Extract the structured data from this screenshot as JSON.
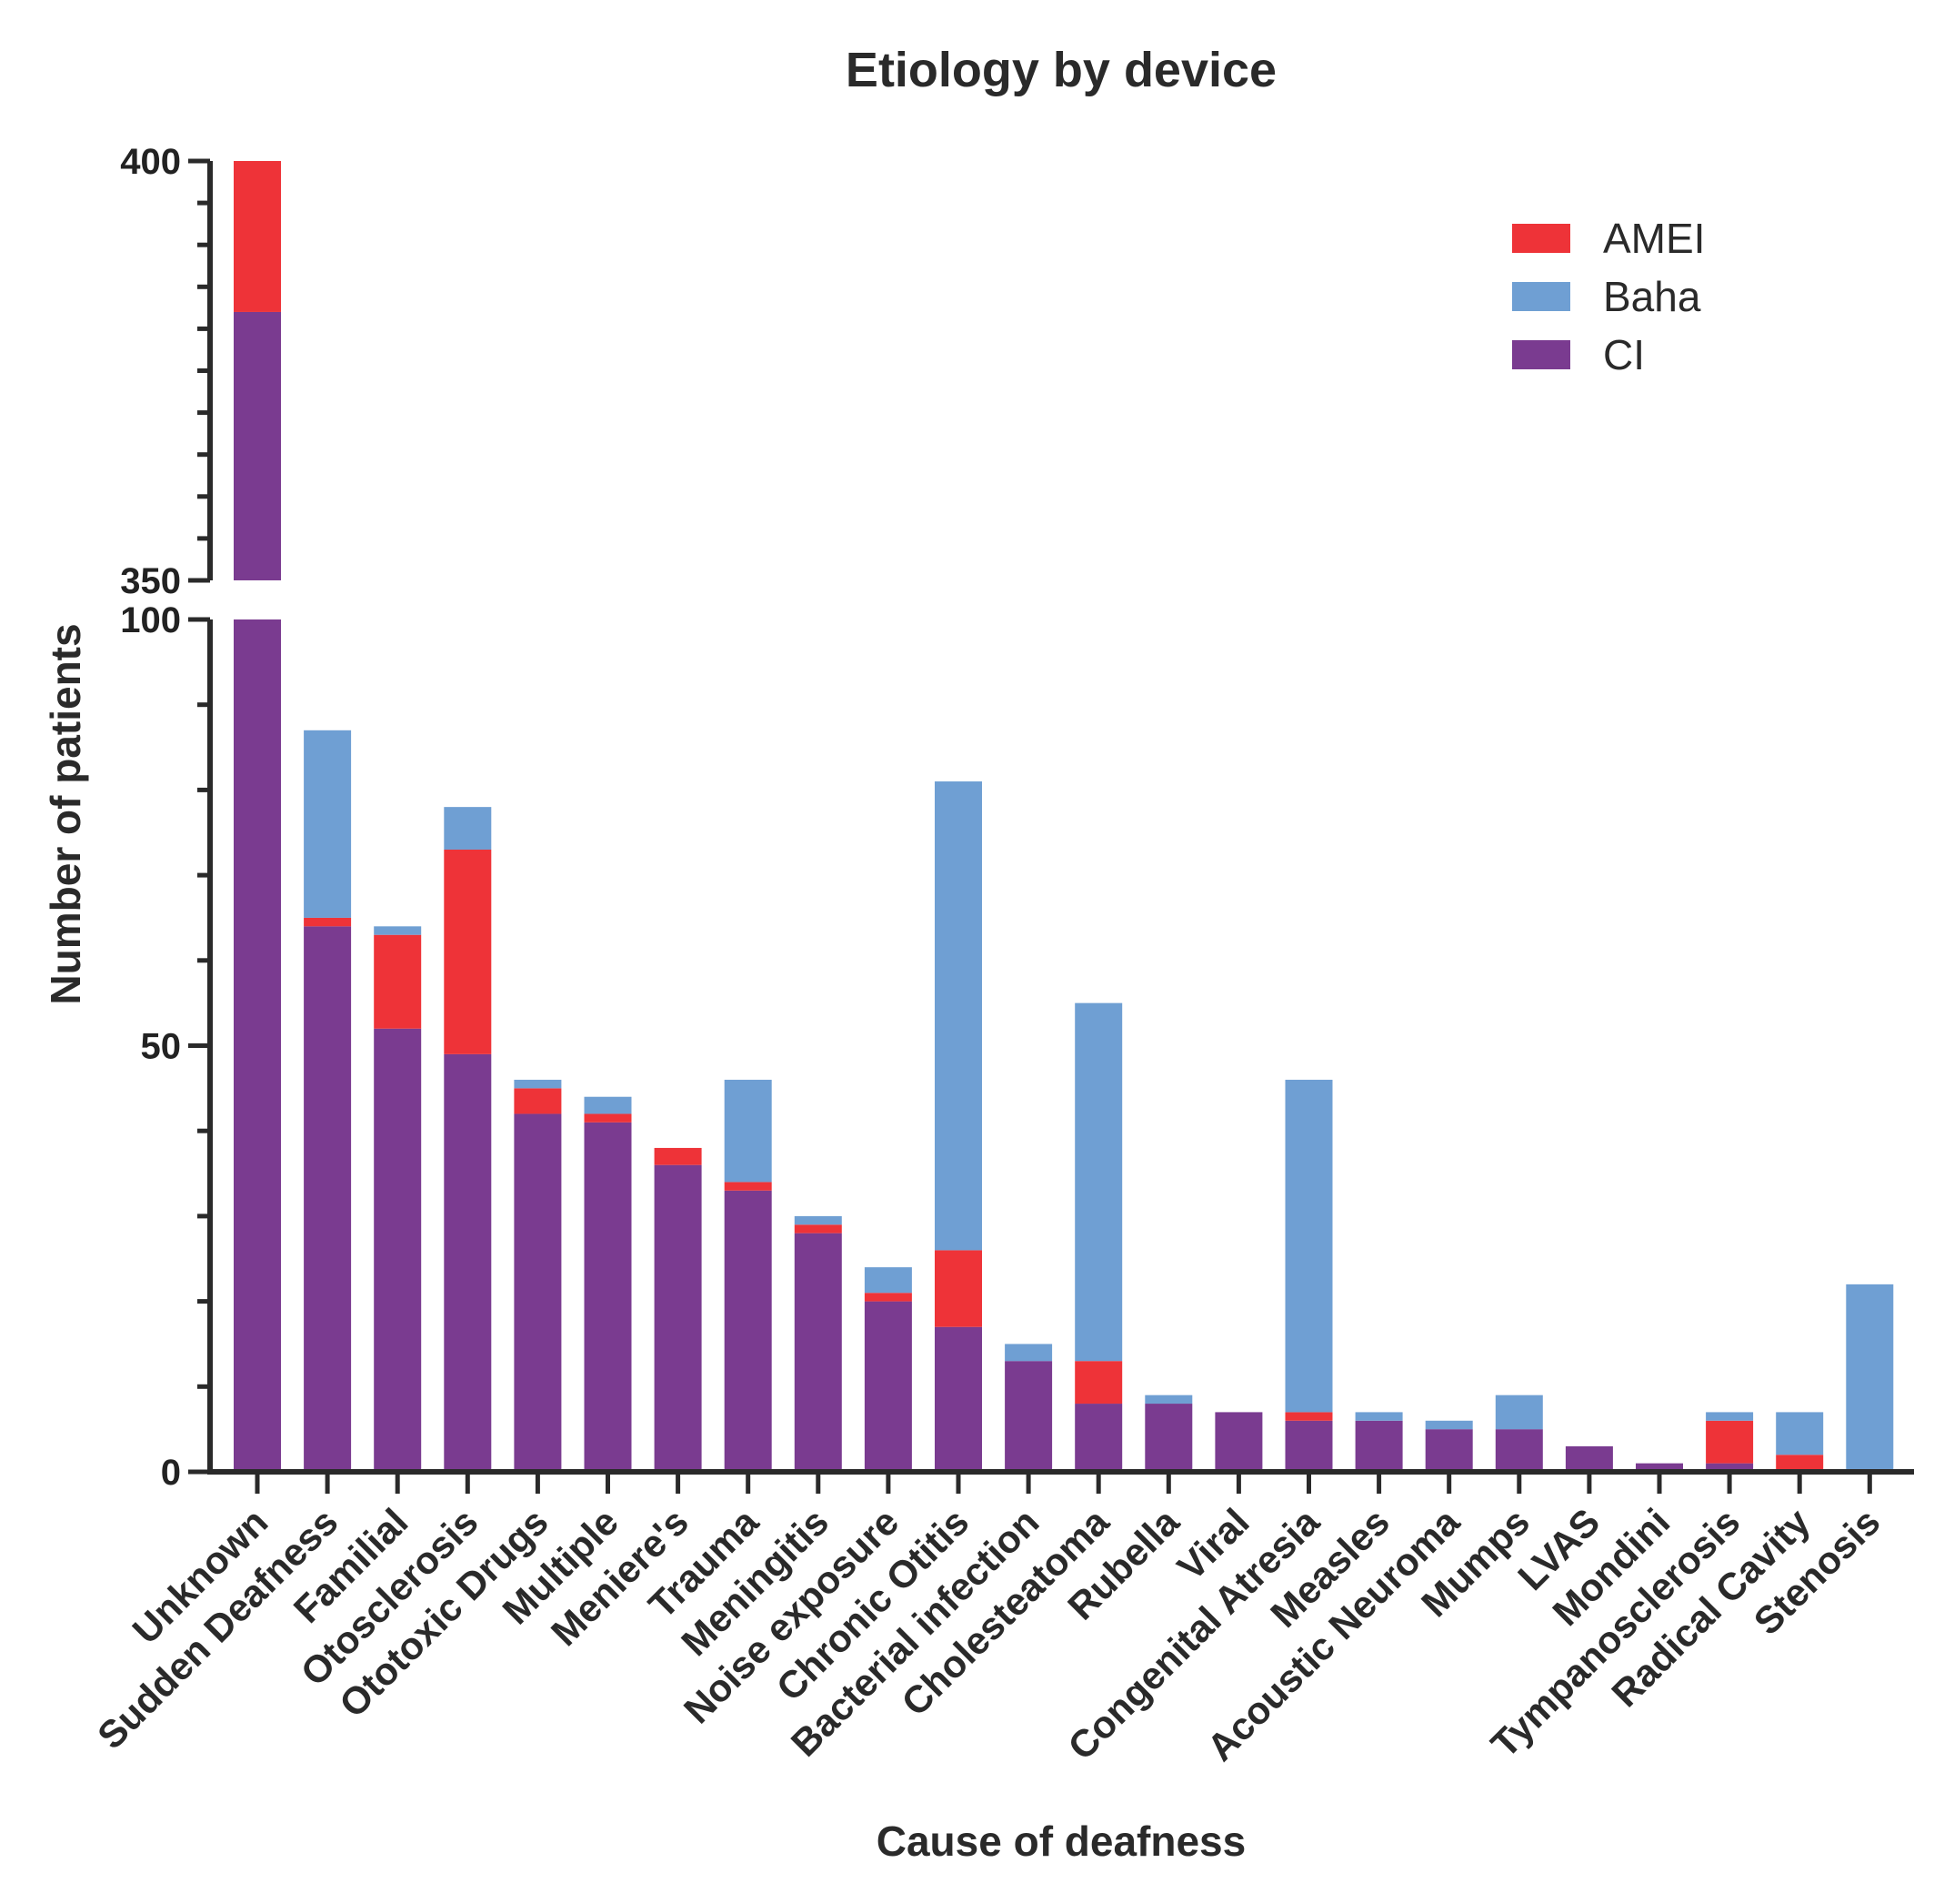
{
  "chart_data": {
    "type": "bar",
    "stacked": true,
    "title": "Etiology by device",
    "xlabel": "Cause of deafness",
    "ylabel": "Number of patients",
    "broken_y_axis": true,
    "ylim_lower": [
      0,
      100
    ],
    "ylim_upper": [
      350,
      400
    ],
    "yticks_lower": [
      "0",
      "50",
      "100"
    ],
    "yticks_upper": [
      "350",
      "400"
    ],
    "legend_position": "top-right",
    "categories": [
      "Unknown",
      "Sudden Deafness",
      "Familial",
      "Otosclerosis",
      "Ototoxic Drugs",
      "Multiple",
      "Meniere's",
      "Trauma",
      "Meningitis",
      "Noise exposure",
      "Chronic Otitis",
      "Bacterial infection",
      "Cholesteatoma",
      "Rubella",
      "Viral",
      "Congenital Atresia",
      "Measles",
      "Acoustic Neuroma",
      "Mumps",
      "LVAS",
      "Mondini",
      "Tympanosclerosis",
      "Radical Cavity",
      "Stenosis"
    ],
    "series": [
      {
        "name": "CI",
        "color": "#7a3b90",
        "values": [
          382,
          64,
          52,
          49,
          42,
          41,
          36,
          33,
          28,
          20,
          17,
          13,
          8,
          8,
          7,
          6,
          6,
          5,
          5,
          3,
          1,
          1,
          0,
          0
        ]
      },
      {
        "name": "AMEI",
        "color": "#ee3338",
        "values": [
          18,
          1,
          11,
          24,
          3,
          1,
          2,
          1,
          1,
          1,
          9,
          0,
          5,
          0,
          0,
          1,
          0,
          0,
          0,
          0,
          0,
          5,
          2,
          0
        ]
      },
      {
        "name": "Baha",
        "color": "#6f9fd3",
        "values": [
          0,
          22,
          1,
          5,
          1,
          2,
          0,
          12,
          1,
          3,
          55,
          2,
          42,
          1,
          0,
          39,
          1,
          1,
          4,
          0,
          0,
          1,
          5,
          22
        ]
      }
    ],
    "legend": [
      {
        "name": "AMEI",
        "color": "#ee3338"
      },
      {
        "name": "Baha",
        "color": "#6f9fd3"
      },
      {
        "name": "CI",
        "color": "#7a3b90"
      }
    ]
  }
}
